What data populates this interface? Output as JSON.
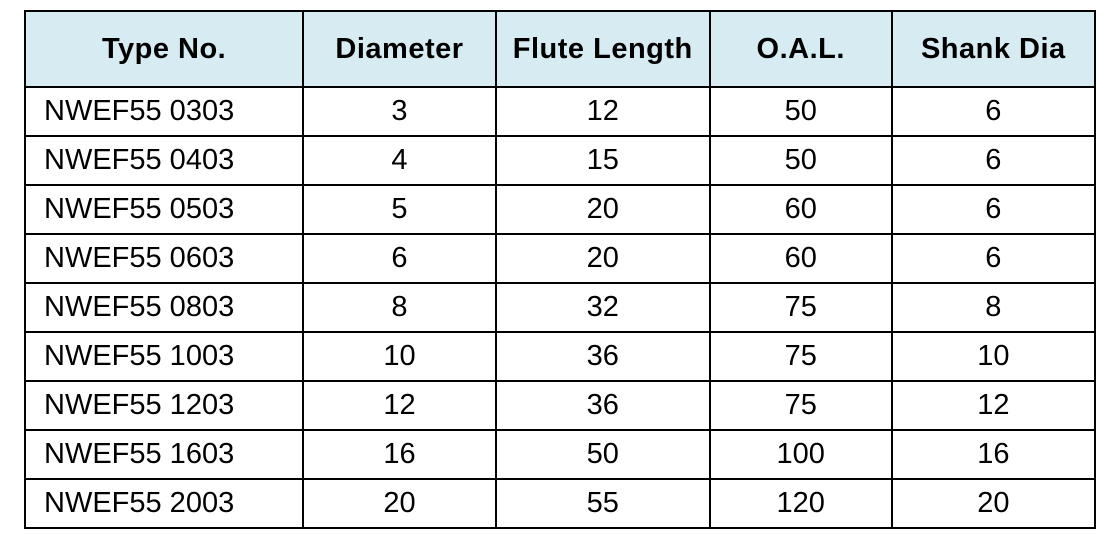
{
  "table": {
    "header_bg": "#d7ebf2",
    "border_color": "#000000",
    "header_fontsize": 29,
    "cell_fontsize": 29,
    "columns": [
      {
        "label": "Type No.",
        "key": "type",
        "class": "col-type"
      },
      {
        "label": "Diameter",
        "key": "dia",
        "class": "col-dia"
      },
      {
        "label": "Flute Length",
        "key": "flute",
        "class": "col-flute"
      },
      {
        "label": "O.A.L.",
        "key": "oal",
        "class": "col-oal"
      },
      {
        "label": "Shank Dia",
        "key": "shank",
        "class": "col-shank"
      }
    ],
    "rows": [
      {
        "type": "NWEF55 0303",
        "dia": "3",
        "flute": "12",
        "oal": "50",
        "shank": "6"
      },
      {
        "type": "NWEF55 0403",
        "dia": "4",
        "flute": "15",
        "oal": "50",
        "shank": "6"
      },
      {
        "type": "NWEF55 0503",
        "dia": "5",
        "flute": "20",
        "oal": "60",
        "shank": "6"
      },
      {
        "type": "NWEF55 0603",
        "dia": "6",
        "flute": "20",
        "oal": "60",
        "shank": "6"
      },
      {
        "type": "NWEF55 0803",
        "dia": "8",
        "flute": "32",
        "oal": "75",
        "shank": "8"
      },
      {
        "type": "NWEF55 1003",
        "dia": "10",
        "flute": "36",
        "oal": "75",
        "shank": "10"
      },
      {
        "type": "NWEF55 1203",
        "dia": "12",
        "flute": "36",
        "oal": "75",
        "shank": "12"
      },
      {
        "type": "NWEF55 1603",
        "dia": "16",
        "flute": "50",
        "oal": "100",
        "shank": "16"
      },
      {
        "type": "NWEF55 2003",
        "dia": "20",
        "flute": "55",
        "oal": "120",
        "shank": "20"
      }
    ]
  }
}
